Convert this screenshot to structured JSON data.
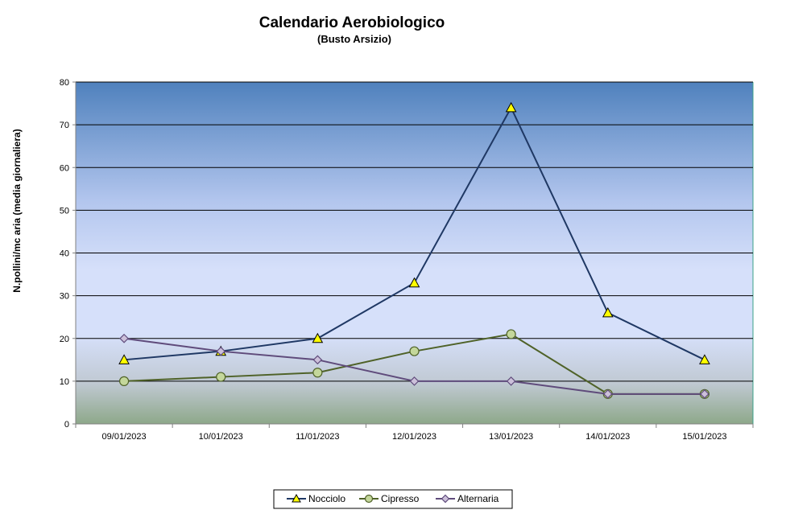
{
  "chart_data": {
    "type": "line",
    "title": "Calendario Aerobiologico",
    "subtitle": "(Busto Arsizio)",
    "xlabel": "",
    "ylabel": "N.pollini/mc aria (media giornaliera)",
    "ylim": [
      0,
      80
    ],
    "yticks": [
      0,
      10,
      20,
      30,
      40,
      50,
      60,
      70,
      80
    ],
    "grid": true,
    "legend_position": "bottom",
    "categories": [
      "09/01/2023",
      "10/01/2023",
      "11/01/2023",
      "12/01/2023",
      "13/01/2023",
      "14/01/2023",
      "15/01/2023"
    ],
    "series": [
      {
        "name": "Nocciolo",
        "values": [
          15,
          17,
          20,
          33,
          74,
          26,
          15
        ],
        "color": "#1f3864",
        "marker": "triangle",
        "marker_color": "#ffff00"
      },
      {
        "name": "Cipresso",
        "values": [
          10,
          11,
          12,
          17,
          21,
          7,
          7
        ],
        "color": "#4f6228",
        "marker": "circle",
        "marker_color": "#c4d79b"
      },
      {
        "name": "Alternaria",
        "values": [
          20,
          17,
          15,
          10,
          10,
          7,
          7
        ],
        "color": "#5f4b7b",
        "marker": "diamond",
        "marker_color": "#ccc0da"
      }
    ]
  }
}
